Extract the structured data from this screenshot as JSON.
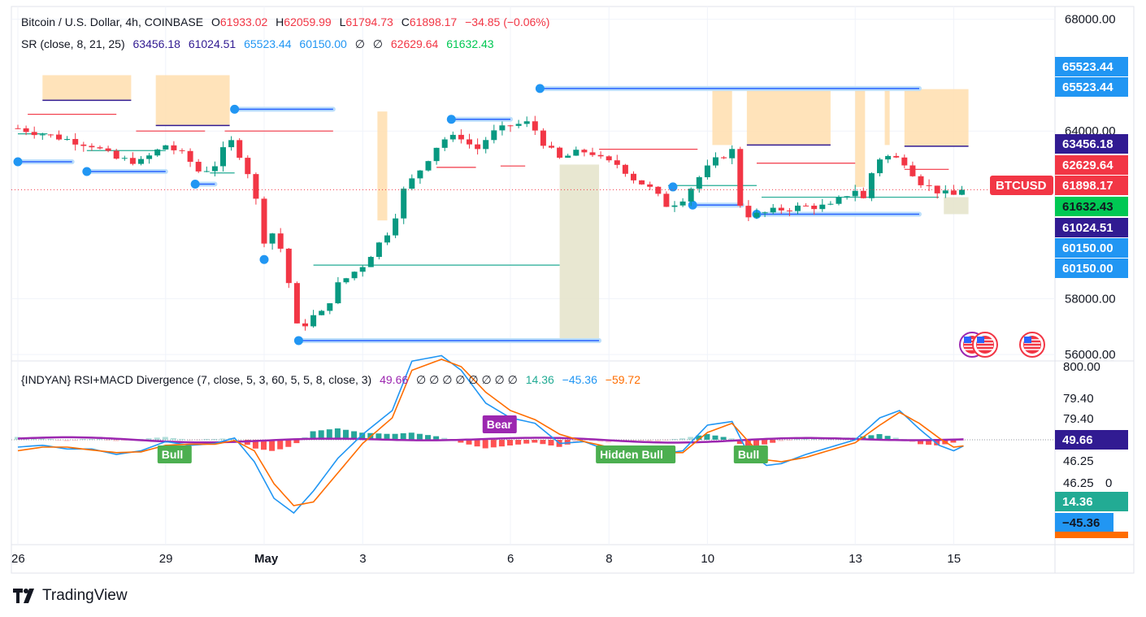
{
  "header": {
    "symbol": "Bitcoin / U.S. Dollar, 4h, COINBASE",
    "open_label": "O",
    "open": "61933.02",
    "high_label": "H",
    "high": "62059.99",
    "low_label": "L",
    "low": "61794.73",
    "close_label": "C",
    "close": "61898.17",
    "change": "−34.85 (−0.06%)"
  },
  "sr_legend": {
    "name": "SR (close, 8, 21, 25)",
    "v1": "63456.18",
    "v2": "61024.51",
    "v3": "65523.44",
    "v4": "60150.00",
    "n1": "∅",
    "n2": "∅",
    "v5": "62629.64",
    "v6": "61632.43"
  },
  "osc_legend": {
    "name": "{INDYAN} RSI+MACD Divergence (7, close, 5, 3, 60, 5, 5, 8, close, 3)",
    "v1": "49.66",
    "nulls": "∅  ∅  ∅  ∅  ∅  ∅  ∅  ∅",
    "v2": "14.36",
    "v3": "−45.36",
    "v4": "−59.72"
  },
  "colors": {
    "up": "#089981",
    "down": "#f23645",
    "resistance": "#f23645",
    "support": "#22ab94",
    "sr_blue": "#2962ff",
    "box_orange": "#ffe0b2",
    "box_olive": "#e6e4cc",
    "rsi": "#9c27b0",
    "macd": "#2196f3",
    "signal": "#ff6d00",
    "navy": "#311b92"
  },
  "chart_data": [
    {
      "type": "candlestick",
      "title": "Bitcoin / U.S. Dollar, 4h, COINBASE",
      "ylim": [
        55800,
        68400
      ],
      "y_ticks": [
        56000,
        58000,
        64000,
        68000
      ],
      "y_tick_labels": [
        "56000.00",
        "58000.00",
        "64000.00",
        "68000.00"
      ],
      "x_tick_labels": [
        {
          "label": "26",
          "day": 0
        },
        {
          "label": "29",
          "day": 3
        },
        {
          "label": "May",
          "day": 5
        },
        {
          "label": "3",
          "day": 7
        },
        {
          "label": "6",
          "day": 10
        },
        {
          "label": "8",
          "day": 12
        },
        {
          "label": "10",
          "day": 14
        },
        {
          "label": "13",
          "day": 17
        },
        {
          "label": "15",
          "day": 19
        }
      ],
      "candle_interval_hours": 4,
      "first_candle_day": 0,
      "closes_keypoints": [
        [
          0,
          64100
        ],
        [
          0.5,
          63900
        ],
        [
          1,
          63700
        ],
        [
          1.5,
          63500
        ],
        [
          2,
          63000
        ],
        [
          2.5,
          62900
        ],
        [
          3,
          63500
        ],
        [
          3.4,
          63100
        ],
        [
          3.7,
          62500
        ],
        [
          4,
          62800
        ],
        [
          4.3,
          63700
        ],
        [
          4.6,
          62900
        ],
        [
          4.8,
          61800
        ],
        [
          5,
          60100
        ],
        [
          5.2,
          60400
        ],
        [
          5.4,
          59500
        ],
        [
          5.7,
          56700
        ],
        [
          5.9,
          57300
        ],
        [
          6.2,
          57500
        ],
        [
          6.5,
          58500
        ],
        [
          7,
          59200
        ],
        [
          7.3,
          59900
        ],
        [
          7.6,
          60600
        ],
        [
          7.8,
          61800
        ],
        [
          8.2,
          62700
        ],
        [
          8.6,
          63700
        ],
        [
          9,
          63800
        ],
        [
          9.3,
          63300
        ],
        [
          9.6,
          63900
        ],
        [
          10,
          64200
        ],
        [
          10.4,
          64300
        ],
        [
          10.7,
          63500
        ],
        [
          11,
          63000
        ],
        [
          11.3,
          63200
        ],
        [
          11.6,
          63300
        ],
        [
          11.9,
          62900
        ],
        [
          12.2,
          62800
        ],
        [
          12.5,
          62300
        ],
        [
          12.8,
          62000
        ],
        [
          13.2,
          61300
        ],
        [
          13.5,
          61600
        ],
        [
          13.9,
          62500
        ],
        [
          14.2,
          63000
        ],
        [
          14.5,
          63300
        ],
        [
          14.7,
          61000
        ],
        [
          15,
          61000
        ],
        [
          15.5,
          61200
        ],
        [
          16,
          61300
        ],
        [
          16.5,
          61300
        ],
        [
          16.8,
          61700
        ],
        [
          17,
          61900
        ],
        [
          17.2,
          61500
        ],
        [
          17.4,
          63000
        ],
        [
          17.7,
          63100
        ],
        [
          18,
          62900
        ],
        [
          18.3,
          62200
        ],
        [
          18.6,
          61900
        ],
        [
          18.9,
          61700
        ],
        [
          19.1,
          61700
        ],
        [
          19.3,
          61900
        ]
      ],
      "last_price": 61898.17,
      "last_label": "BTCUSD",
      "price_labels": [
        "65523.44",
        "65523.44",
        "63456.18",
        "62629.64",
        "61898.17",
        "61632.43",
        "61024.51",
        "60150.00",
        "60150.00"
      ],
      "sr_segments": [
        {
          "kind": "support-blue",
          "from": 0,
          "to": 1.1,
          "price": 62900
        },
        {
          "kind": "support-blue",
          "from": 1.4,
          "to": 3,
          "price": 62550
        },
        {
          "kind": "support-blue",
          "from": 3.6,
          "to": 4,
          "price": 62100
        },
        {
          "kind": "resistance-blue",
          "from": 4.4,
          "to": 6.4,
          "price": 64780
        },
        {
          "kind": "support-blue",
          "from": 5,
          "to": 5,
          "price": 59400
        },
        {
          "kind": "support-blue",
          "from": 5.7,
          "to": 11.8,
          "price": 56500
        },
        {
          "kind": "resistance-blue",
          "from": 8.8,
          "to": 10,
          "price": 64420
        },
        {
          "kind": "resistance-blue",
          "from": 10.6,
          "to": 18.3,
          "price": 65523.44
        },
        {
          "kind": "support-blue",
          "from": 13.3,
          "to": 13.3,
          "price": 62000
        },
        {
          "kind": "support-blue",
          "from": 13.7,
          "to": 14.7,
          "price": 61350
        },
        {
          "kind": "support-blue",
          "from": 15,
          "to": 18.3,
          "price": 61024.51
        }
      ],
      "level_lines": [
        {
          "kind": "resistance",
          "from": 0.2,
          "to": 2,
          "price": 64600
        },
        {
          "kind": "resistance",
          "from": 2.4,
          "to": 3.8,
          "price": 64000
        },
        {
          "kind": "resistance",
          "from": 4.2,
          "to": 6.4,
          "price": 64000
        },
        {
          "kind": "resistance",
          "from": 8.5,
          "to": 9.3,
          "price": 62700
        },
        {
          "kind": "resistance",
          "from": 9.8,
          "to": 10.3,
          "price": 62750
        },
        {
          "kind": "resistance",
          "from": 11.8,
          "to": 13.8,
          "price": 63350
        },
        {
          "kind": "resistance",
          "from": 15,
          "to": 17,
          "price": 62850
        },
        {
          "kind": "resistance",
          "from": 18,
          "to": 18.9,
          "price": 62629.64
        },
        {
          "kind": "support",
          "from": 0,
          "to": 0.6,
          "price": 63900
        },
        {
          "kind": "support",
          "from": 1.4,
          "to": 3,
          "price": 63300
        },
        {
          "kind": "support",
          "from": 3.9,
          "to": 4.4,
          "price": 62500
        },
        {
          "kind": "support",
          "from": 6,
          "to": 11,
          "price": 59200
        },
        {
          "kind": "support",
          "from": 13.2,
          "to": 15,
          "price": 62050
        },
        {
          "kind": "support",
          "from": 15.1,
          "to": 18.7,
          "price": 61632.43
        }
      ],
      "zones": [
        {
          "color": "orange",
          "from": 0.5,
          "to": 2.3,
          "top": 66000,
          "bottom": 65100
        },
        {
          "color": "orange",
          "from": 2.8,
          "to": 4.3,
          "top": 66000,
          "bottom": 64200
        },
        {
          "color": "orange",
          "from": 7.3,
          "to": 7.5,
          "top": 64700,
          "bottom": 60800
        },
        {
          "color": "olive",
          "from": 11,
          "to": 11.8,
          "top": 62800,
          "bottom": 56500
        },
        {
          "color": "orange",
          "from": 14.1,
          "to": 14.5,
          "top": 65500,
          "bottom": 63500
        },
        {
          "color": "orange",
          "from": 14.8,
          "to": 16.5,
          "top": 65500,
          "bottom": 63500
        },
        {
          "color": "orange",
          "from": 17,
          "to": 17.2,
          "top": 65500,
          "bottom": 62000
        },
        {
          "color": "orange",
          "from": 17.6,
          "to": 17.7,
          "top": 65500,
          "bottom": 63500
        },
        {
          "color": "orange",
          "from": 18,
          "to": 19.3,
          "top": 65500,
          "bottom": 63456.18
        },
        {
          "color": "olive",
          "from": 18.8,
          "to": 19.3,
          "top": 61632.43,
          "bottom": 61024.51
        }
      ]
    },
    {
      "type": "line",
      "title": "{INDYAN} RSI+MACD Divergence (7, close, 5, 3, 60, 5, 5, 8, close, 3)",
      "y_tick_labels": [
        "800.00",
        "79.40",
        "79.40",
        "46.25",
        "46.25",
        "0"
      ],
      "value_labels": [
        "49.66",
        "14.36",
        "−45.36",
        "−59.72"
      ],
      "rsi_last": 49.66,
      "macd_keypoints": [
        [
          0,
          -20
        ],
        [
          0.5,
          -15
        ],
        [
          1,
          -25
        ],
        [
          1.5,
          -25
        ],
        [
          2,
          -40
        ],
        [
          2.5,
          -30
        ],
        [
          3,
          -5
        ],
        [
          3.5,
          -15
        ],
        [
          4,
          -10
        ],
        [
          4.4,
          5
        ],
        [
          4.8,
          -60
        ],
        [
          5.2,
          -160
        ],
        [
          5.6,
          -200
        ],
        [
          6,
          -140
        ],
        [
          6.5,
          -50
        ],
        [
          7,
          15
        ],
        [
          7.6,
          80
        ],
        [
          8,
          215
        ],
        [
          8.6,
          230
        ],
        [
          9,
          190
        ],
        [
          9.5,
          100
        ],
        [
          10,
          60
        ],
        [
          10.5,
          45
        ],
        [
          11,
          -10
        ],
        [
          11.5,
          -5
        ],
        [
          12,
          -30
        ],
        [
          12.5,
          -30
        ],
        [
          13,
          -40
        ],
        [
          13.5,
          -30
        ],
        [
          14,
          40
        ],
        [
          14.5,
          50
        ],
        [
          14.8,
          -30
        ],
        [
          15.2,
          -70
        ],
        [
          15.5,
          -65
        ],
        [
          16,
          -40
        ],
        [
          16.5,
          -20
        ],
        [
          17,
          0
        ],
        [
          17.5,
          60
        ],
        [
          17.9,
          80
        ],
        [
          18.3,
          30
        ],
        [
          18.7,
          -15
        ],
        [
          19,
          -30
        ],
        [
          19.3,
          -10
        ]
      ],
      "signal_keypoints": [
        [
          0,
          -30
        ],
        [
          0.5,
          -20
        ],
        [
          1,
          -20
        ],
        [
          1.5,
          -28
        ],
        [
          2,
          -35
        ],
        [
          2.5,
          -33
        ],
        [
          3,
          -15
        ],
        [
          3.5,
          -12
        ],
        [
          4,
          -12
        ],
        [
          4.4,
          -2
        ],
        [
          4.8,
          -30
        ],
        [
          5.2,
          -120
        ],
        [
          5.6,
          -180
        ],
        [
          6,
          -170
        ],
        [
          6.5,
          -90
        ],
        [
          7,
          -10
        ],
        [
          7.6,
          60
        ],
        [
          8,
          190
        ],
        [
          8.6,
          220
        ],
        [
          9,
          200
        ],
        [
          9.5,
          130
        ],
        [
          10,
          80
        ],
        [
          10.5,
          55
        ],
        [
          11,
          15
        ],
        [
          11.5,
          -5
        ],
        [
          12,
          -20
        ],
        [
          12.5,
          -28
        ],
        [
          13,
          -35
        ],
        [
          13.5,
          -35
        ],
        [
          14,
          20
        ],
        [
          14.5,
          45
        ],
        [
          14.8,
          0
        ],
        [
          15.2,
          -55
        ],
        [
          15.5,
          -60
        ],
        [
          16,
          -48
        ],
        [
          16.5,
          -28
        ],
        [
          17,
          -8
        ],
        [
          17.5,
          40
        ],
        [
          17.9,
          75
        ],
        [
          18.3,
          45
        ],
        [
          18.7,
          5
        ],
        [
          19,
          -20
        ],
        [
          19.3,
          -15
        ]
      ],
      "labels": [
        {
          "text": "Bull",
          "day": 3,
          "kind": "bull"
        },
        {
          "text": "Bear",
          "day": 9.6,
          "kind": "bear"
        },
        {
          "text": "Hidden Bull",
          "day": 11.9,
          "kind": "bull"
        },
        {
          "text": "Bull",
          "day": 14.7,
          "kind": "bull"
        }
      ]
    }
  ],
  "brand": {
    "name": "TradingView"
  }
}
